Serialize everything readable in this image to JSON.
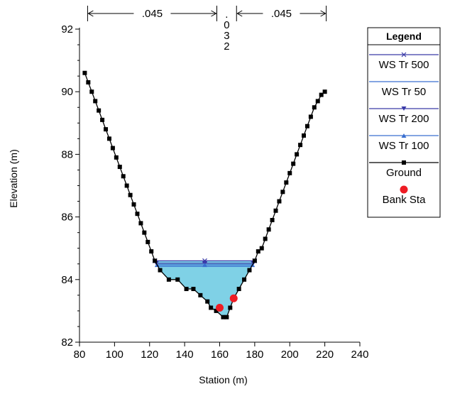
{
  "chart_data": {
    "type": "line",
    "xlabel": "Station (m)",
    "ylabel": "Elevation (m)",
    "xlim": [
      80,
      240
    ],
    "ylim": [
      82,
      92
    ],
    "xticks": [
      "80",
      "100",
      "120",
      "140",
      "160",
      "180",
      "200",
      "220",
      "240"
    ],
    "yticks": [
      "82",
      "84",
      "86",
      "88",
      "90",
      "92"
    ],
    "grid": false,
    "legend_position": "right",
    "legend": {
      "title": "Legend",
      "entries": [
        "WS Tr 500",
        "WS Tr 50",
        "WS Tr 200",
        "WS Tr 100",
        "Ground",
        "Bank Sta"
      ]
    },
    "manning": {
      "left": ".045",
      "channel": ".032",
      "right": ".045",
      "bank_left_station": 160,
      "bank_right_station": 168,
      "overbank_left_start": 83,
      "overbank_right_end": 220
    },
    "water_surfaces": [
      {
        "name": "WS Tr 500",
        "elevation": 84.6,
        "color": "#3a3aa8",
        "marker": "x"
      },
      {
        "name": "WS Tr 50",
        "elevation": 84.42,
        "color": "#3a6fd0",
        "marker": "none"
      },
      {
        "name": "WS Tr 200",
        "elevation": 84.52,
        "color": "#3a3aa8",
        "marker": "triangle-down"
      },
      {
        "name": "WS Tr 100",
        "elevation": 84.47,
        "color": "#3a6fd0",
        "marker": "triangle-up"
      }
    ],
    "ground": {
      "name": "Ground",
      "x": [
        83,
        85,
        87,
        89,
        91,
        93,
        95,
        97,
        99,
        101,
        103,
        105,
        107,
        109,
        111,
        113,
        115,
        117,
        119,
        121,
        123,
        126,
        131,
        136,
        141,
        145,
        149,
        153,
        155,
        158,
        162,
        164,
        166,
        168,
        171,
        174,
        177,
        180,
        182,
        184,
        186,
        188,
        190,
        192,
        194,
        196,
        198,
        200,
        202,
        204,
        206,
        208,
        210,
        212,
        214,
        216,
        218,
        220
      ],
      "y": [
        90.6,
        90.3,
        90.0,
        89.7,
        89.4,
        89.1,
        88.8,
        88.5,
        88.2,
        87.9,
        87.6,
        87.3,
        87.0,
        86.7,
        86.4,
        86.1,
        85.8,
        85.5,
        85.2,
        84.9,
        84.6,
        84.3,
        84.0,
        84.0,
        83.7,
        83.7,
        83.5,
        83.3,
        83.1,
        83.0,
        82.8,
        82.8,
        83.1,
        83.4,
        83.7,
        84.0,
        84.3,
        84.6,
        84.9,
        85.0,
        85.3,
        85.6,
        85.9,
        86.2,
        86.5,
        86.8,
        87.1,
        87.4,
        87.7,
        88.0,
        88.3,
        88.6,
        88.9,
        89.2,
        89.5,
        89.7,
        89.9,
        90.0
      ]
    },
    "bank_stations": {
      "name": "Bank Sta",
      "points": [
        {
          "x": 160,
          "y": 83.1
        },
        {
          "x": 168,
          "y": 83.4
        }
      ]
    },
    "colors": {
      "water_fill": "#7fd1e6",
      "ground": "#000000",
      "bank": "#ee1c24",
      "ws_dark": "#3a3aa8",
      "ws_light": "#3a6fd0"
    }
  }
}
